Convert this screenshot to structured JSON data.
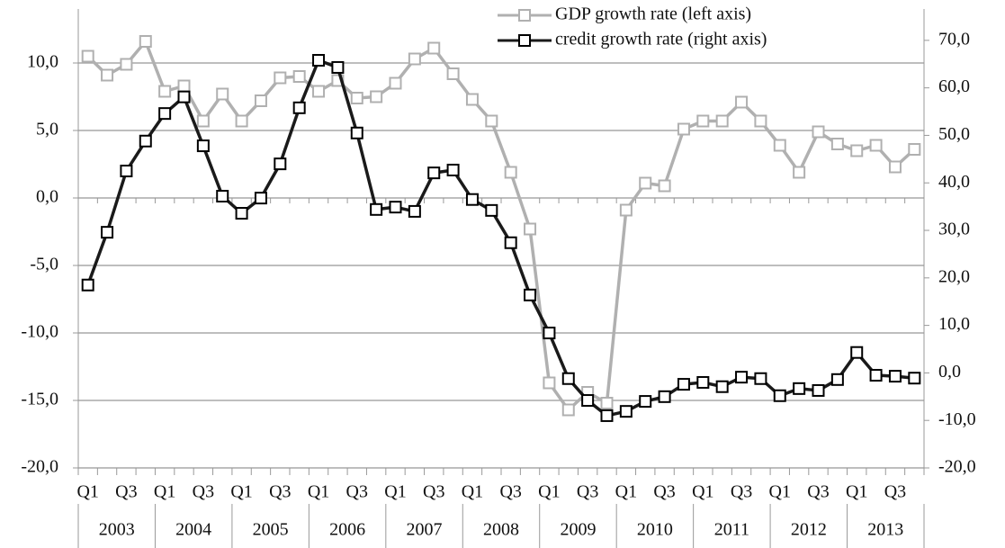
{
  "chart_data": {
    "type": "line",
    "categories": [
      "Q1",
      null,
      "Q3",
      null,
      "Q1",
      null,
      "Q3",
      null,
      "Q1",
      null,
      "Q3",
      null,
      "Q1",
      null,
      "Q3",
      null,
      "Q1",
      null,
      "Q3",
      null,
      "Q1",
      null,
      "Q3",
      null,
      "Q1",
      null,
      "Q3",
      null,
      "Q1",
      null,
      "Q3",
      null,
      "Q1",
      null,
      "Q3",
      null,
      "Q1",
      null,
      "Q3",
      null,
      "Q1",
      null,
      "Q3",
      null
    ],
    "years": [
      "2003",
      "2004",
      "2005",
      "2006",
      "2007",
      "2008",
      "2009",
      "2010",
      "2011",
      "2012",
      "2013"
    ],
    "series": [
      {
        "name": "GDP growth rate  (left axis)",
        "color": "#b0b0b0",
        "axis": "y",
        "values": [
          10.5,
          9.1,
          9.9,
          11.6,
          7.9,
          8.3,
          5.7,
          7.7,
          5.7,
          7.2,
          8.9,
          9.0,
          7.9,
          8.7,
          7.4,
          7.5,
          8.5,
          10.3,
          11.1,
          9.2,
          7.3,
          5.7,
          1.9,
          -2.3,
          -13.7,
          -15.7,
          -14.4,
          -15.2,
          -0.9,
          1.1,
          0.9,
          5.1,
          5.7,
          5.7,
          7.1,
          5.7,
          3.9,
          1.9,
          4.9,
          4.0,
          3.5,
          3.9,
          2.3,
          3.6
        ]
      },
      {
        "name": "credit growth rate  (right axis)",
        "color": "#1a1a1a",
        "axis": "y2",
        "values": [
          18.5,
          29.6,
          42.5,
          48.8,
          54.6,
          58.1,
          47.8,
          37.2,
          33.6,
          36.8,
          44.0,
          55.8,
          65.8,
          64.3,
          50.5,
          34.4,
          34.9,
          34.0,
          42.1,
          42.7,
          36.5,
          34.2,
          27.4,
          16.4,
          8.4,
          -1.2,
          -5.8,
          -9.0,
          -8.1,
          -6.0,
          -5.0,
          -2.4,
          -2.0,
          -2.9,
          -0.9,
          -1.2,
          -4.8,
          -3.3,
          -3.7,
          -1.4,
          4.3,
          -0.5,
          -0.7,
          -1.1
        ]
      }
    ],
    "ylim": [
      -20,
      14
    ],
    "yticks": [
      {
        "value": -20,
        "label": "-20,0"
      },
      {
        "value": -15,
        "label": "-15,0"
      },
      {
        "value": -10,
        "label": "-10,0"
      },
      {
        "value": -5,
        "label": "-5,0"
      },
      {
        "value": 0,
        "label": "0,0"
      },
      {
        "value": 5,
        "label": "5,0"
      },
      {
        "value": 10,
        "label": "10,0"
      }
    ],
    "y2lim": [
      -20,
      76.6
    ],
    "y2ticks": [
      {
        "value": -20,
        "label": "-20,0"
      },
      {
        "value": -10,
        "label": "-10,0"
      },
      {
        "value": 0,
        "label": "0,0"
      },
      {
        "value": 10,
        "label": "10,0"
      },
      {
        "value": 20,
        "label": "20,0"
      },
      {
        "value": 30,
        "label": "30,0"
      },
      {
        "value": 40,
        "label": "40,0"
      },
      {
        "value": 50,
        "label": "50,0"
      },
      {
        "value": 60,
        "label": "60,0"
      },
      {
        "value": 70,
        "label": "70,0"
      }
    ],
    "grid": true,
    "legend": "top-right"
  }
}
